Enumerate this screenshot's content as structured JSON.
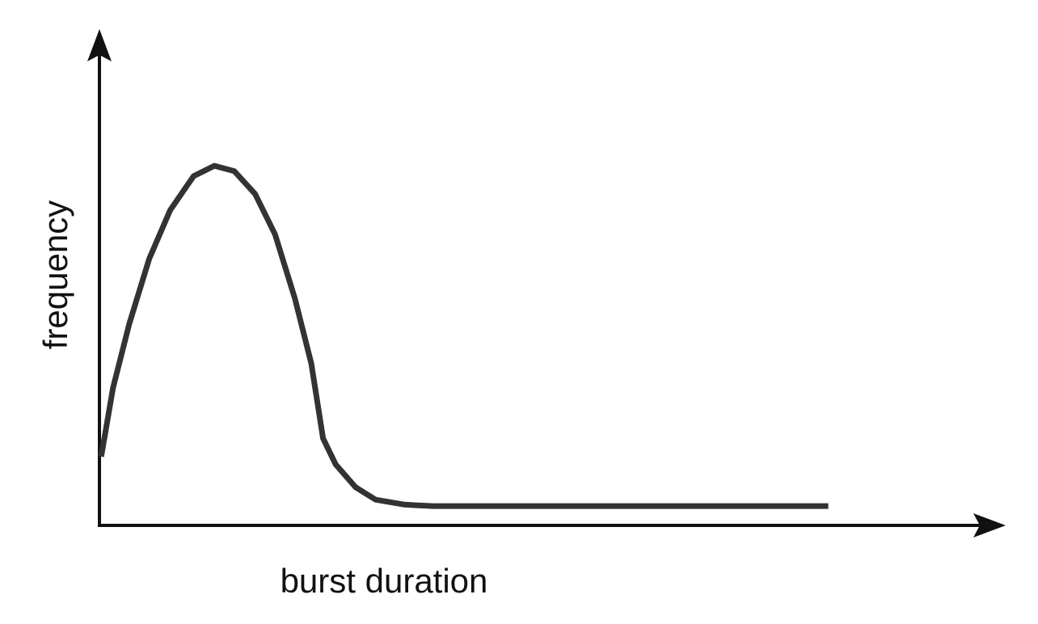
{
  "chart_data": {
    "type": "line",
    "x_label": "burst duration",
    "y_label": "frequency",
    "x": [
      0.2,
      1.5,
      3.3,
      5.5,
      7.8,
      10.4,
      12.7,
      14.9,
      17.2,
      19.4,
      21.6,
      23.4,
      24.7,
      26.1,
      28.3,
      30.5,
      33.7,
      36.8,
      80.5
    ],
    "values": [
      13.9,
      27.8,
      40.8,
      53.9,
      63.7,
      70.6,
      72.7,
      71.6,
      67.0,
      58.8,
      45.8,
      32.7,
      17.6,
      12.3,
      7.7,
      5.2,
      4.2,
      3.9,
      3.9
    ],
    "color": "#333333",
    "xlim": [
      0,
      100
    ],
    "ylim": [
      0,
      100
    ]
  }
}
